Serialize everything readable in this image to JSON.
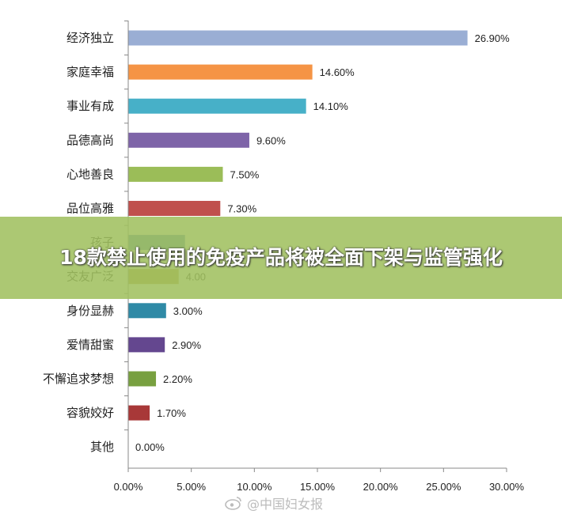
{
  "banner": {
    "title": "18款禁止使用的免疫产品将被全面下架与监管强化"
  },
  "watermark": {
    "text": "@中国妇女报",
    "icon": "weibo-icon"
  },
  "chart_data": {
    "type": "bar",
    "orientation": "horizontal",
    "categories": [
      "经济独立",
      "家庭幸福",
      "事业有成",
      "品德高尚",
      "心地善良",
      "品位高雅",
      "孩子",
      "交友广泛",
      "身份显赫",
      "爱情甜蜜",
      "不懈追求梦想",
      "容貌姣好",
      "其他"
    ],
    "values": [
      26.9,
      14.6,
      14.1,
      9.6,
      7.5,
      7.3,
      4.5,
      4.0,
      3.0,
      2.9,
      2.2,
      1.7,
      0.0
    ],
    "value_labels": [
      "26.90%",
      "14.60%",
      "14.10%",
      "9.60%",
      "7.50%",
      "7.30%",
      "",
      "4.00",
      "3.00%",
      "2.90%",
      "2.20%",
      "1.70%",
      "0.00%"
    ],
    "colors": [
      "#9aaed4",
      "#f59445",
      "#47b0c8",
      "#7e64a8",
      "#9bbd58",
      "#c0504d",
      "#4f81bd",
      "#b09a3a",
      "#2f8aa6",
      "#64478f",
      "#78a040",
      "#a83838",
      "#4f81bd"
    ],
    "xlim": [
      0,
      30
    ],
    "xticks": [
      "0.00%",
      "5.00%",
      "10.00%",
      "15.00%",
      "20.00%",
      "25.00%",
      "30.00%"
    ],
    "grid": false,
    "legend": "none"
  }
}
